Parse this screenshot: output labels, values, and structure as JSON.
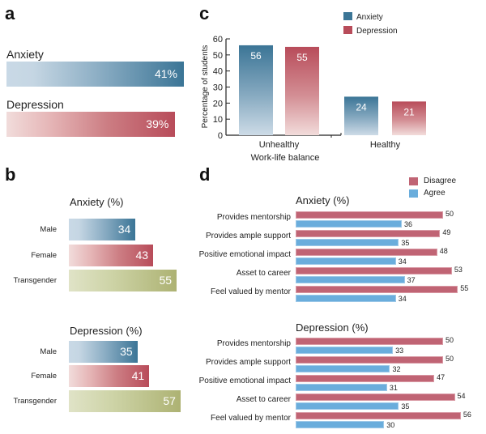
{
  "panels": {
    "a": "a",
    "b": "b",
    "c": "c",
    "d": "d"
  },
  "chart_data": [
    {
      "panel": "a",
      "type": "bar",
      "orientation": "horizontal",
      "categories": [
        "Anxiety",
        "Depression"
      ],
      "values": [
        41,
        39
      ],
      "value_labels": [
        "41%",
        "39%"
      ],
      "xlim": [
        0,
        41
      ]
    },
    {
      "panel": "b",
      "type": "bar",
      "orientation": "horizontal",
      "groups": [
        {
          "title": "Anxiety (%)",
          "categories": [
            "Male",
            "Female",
            "Transgender"
          ],
          "values": [
            34,
            43,
            55
          ]
        },
        {
          "title": "Depression (%)",
          "categories": [
            "Male",
            "Female",
            "Transgender"
          ],
          "values": [
            35,
            41,
            57
          ]
        }
      ]
    },
    {
      "panel": "c",
      "type": "bar",
      "categories": [
        "Unhealthy",
        "Healthy"
      ],
      "series": [
        {
          "name": "Anxiety",
          "values": [
            56,
            24
          ],
          "color": "#3b7596"
        },
        {
          "name": "Depression",
          "values": [
            55,
            21
          ],
          "color": "#b84c5a"
        }
      ],
      "xlabel": "Work-life balance",
      "ylabel": "Percentage of students",
      "ylim": [
        0,
        60
      ],
      "yticks": [
        0,
        10,
        20,
        30,
        40,
        50,
        60
      ],
      "legend": "top-right"
    },
    {
      "panel": "d",
      "type": "bar",
      "orientation": "horizontal",
      "legend": [
        {
          "name": "Disagree",
          "color": "#c06474"
        },
        {
          "name": "Agree",
          "color": "#6aaddc"
        }
      ],
      "groups": [
        {
          "title": "Anxiety (%)",
          "categories": [
            "Provides mentorship",
            "Provides ample support",
            "Positive emotional impact",
            "Asset to career",
            "Feel valued by mentor"
          ],
          "series": [
            {
              "name": "Disagree",
              "values": [
                50,
                49,
                48,
                53,
                55
              ]
            },
            {
              "name": "Agree",
              "values": [
                36,
                35,
                34,
                37,
                34
              ]
            }
          ]
        },
        {
          "title": "Depression (%)",
          "categories": [
            "Provides mentorship",
            "Provides ample support",
            "Positive emotional impact",
            "Asset to career",
            "Feel valued by mentor"
          ],
          "series": [
            {
              "name": "Disagree",
              "values": [
                50,
                50,
                47,
                54,
                56
              ]
            },
            {
              "name": "Agree",
              "values": [
                33,
                32,
                31,
                35,
                30
              ]
            }
          ]
        }
      ]
    }
  ]
}
